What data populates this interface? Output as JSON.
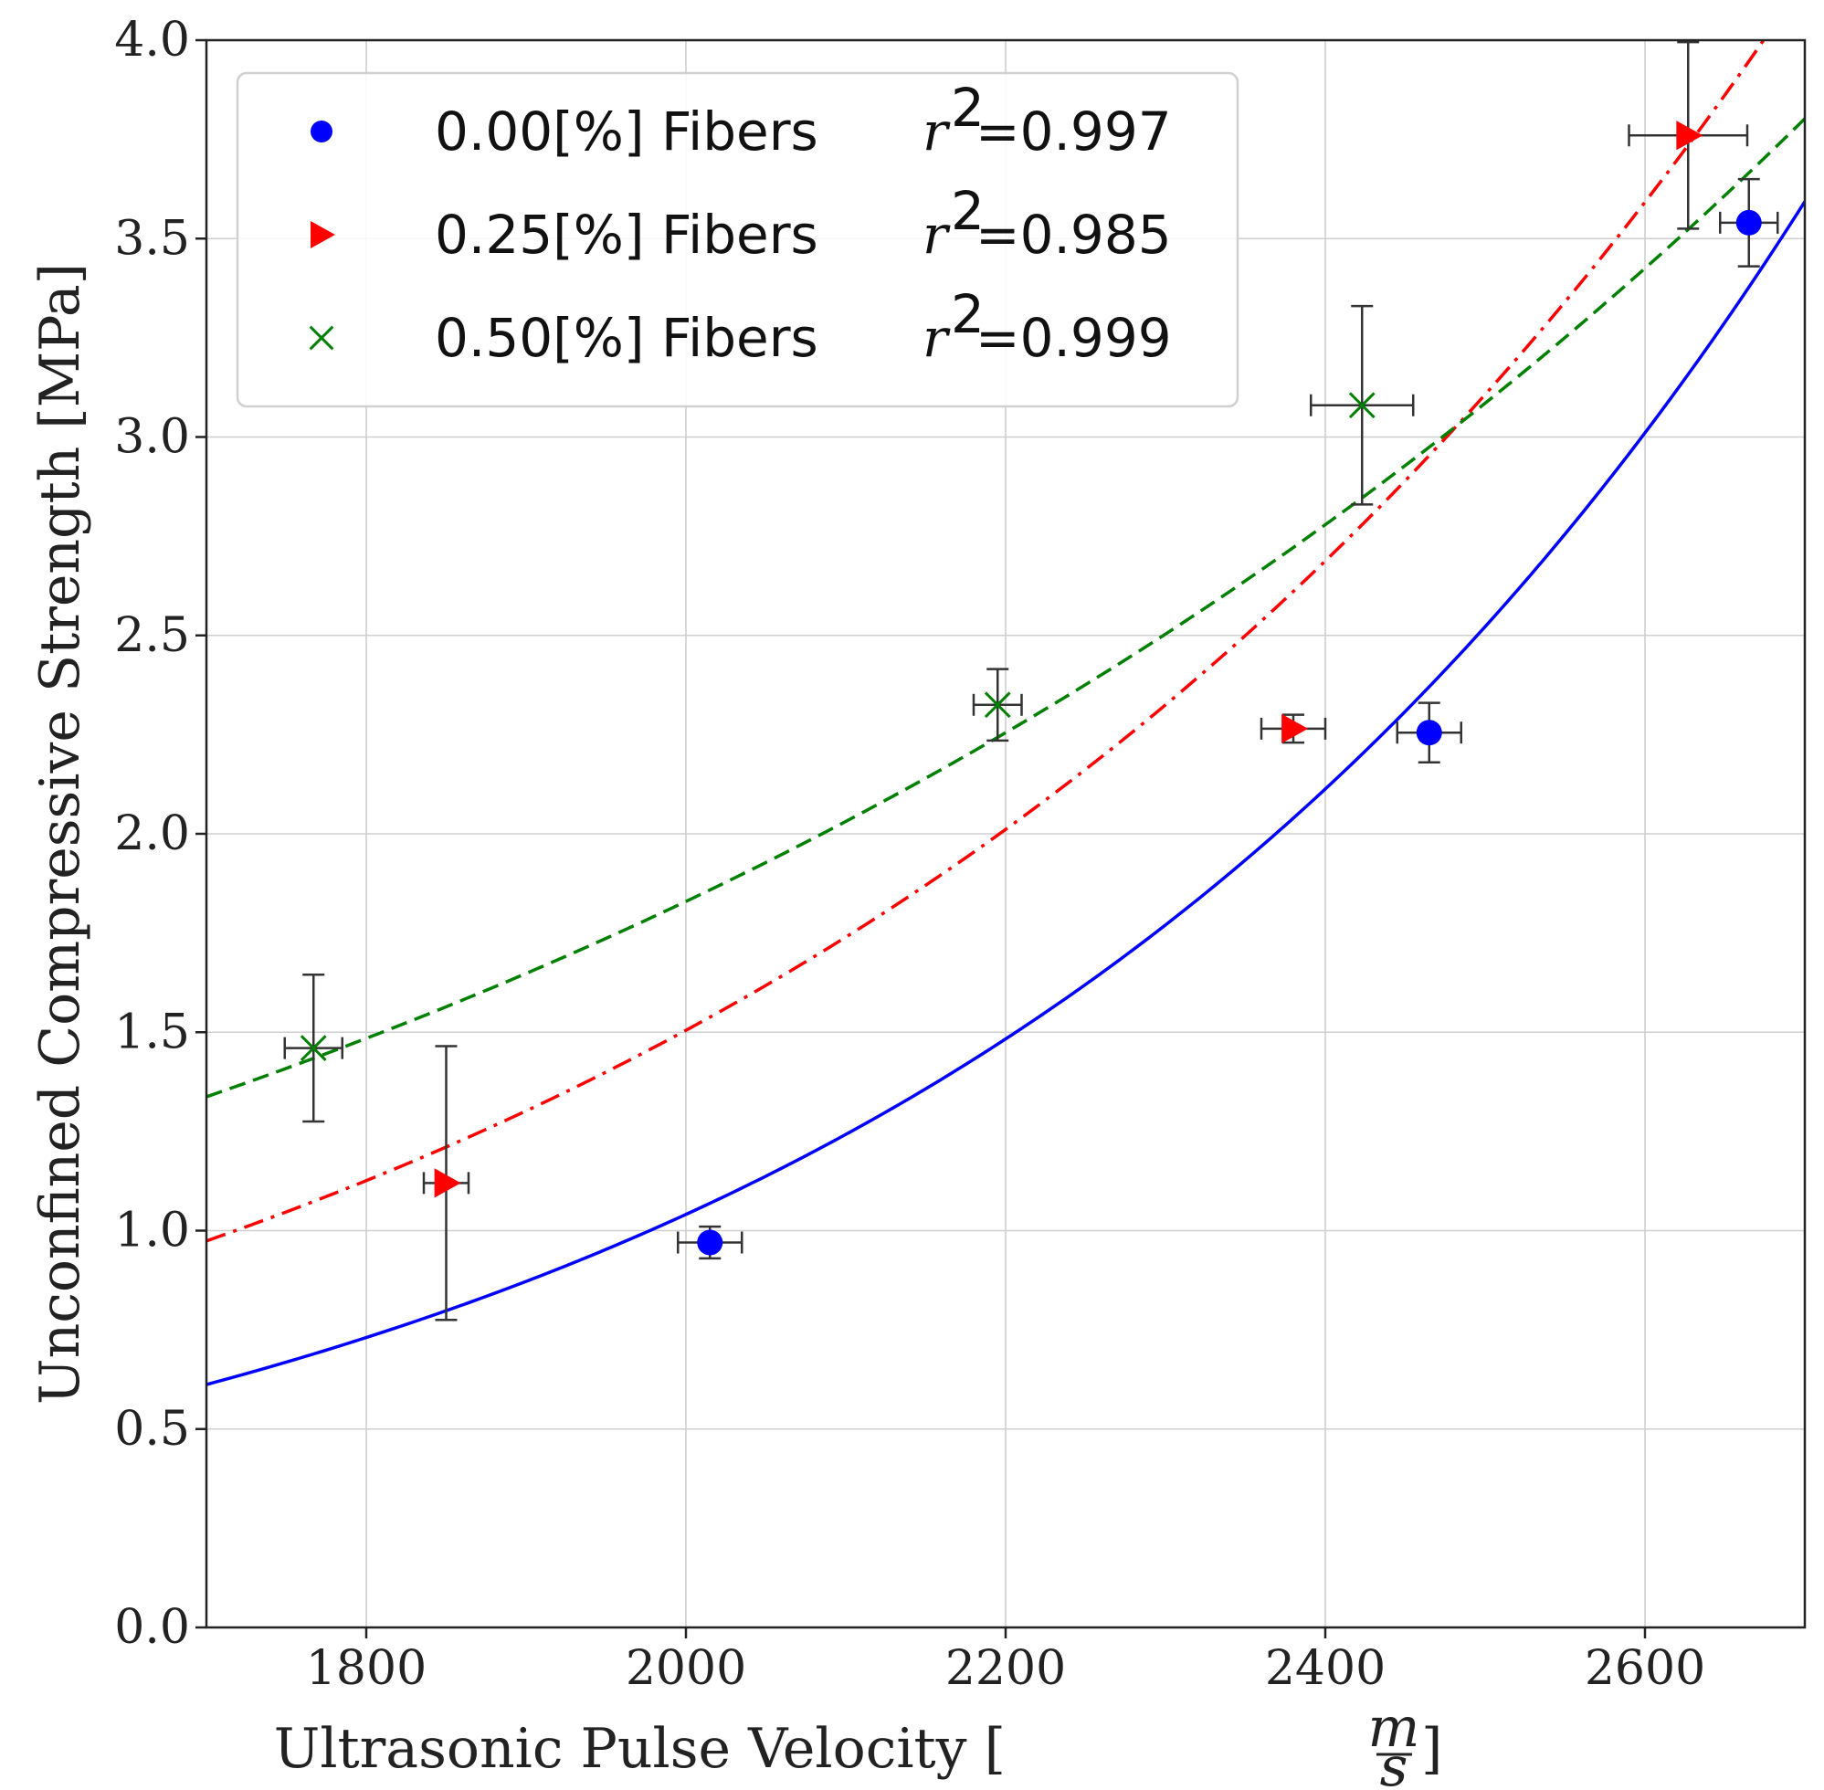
{
  "chart_data": {
    "type": "scatter",
    "xlabel": "Ultrasonic Pulse Velocity",
    "xlabel_unit_num": "m",
    "xlabel_unit_den": "s",
    "ylabel": "Unconfined Compressive Strength [MPa]",
    "xlim": [
      1700,
      2700
    ],
    "ylim": [
      0.0,
      4.0
    ],
    "xticks": [
      1800,
      2000,
      2200,
      2400,
      2600
    ],
    "xtick_labels": [
      "1800",
      "2000",
      "2200",
      "2400",
      "2600"
    ],
    "yticks": [
      0.0,
      0.5,
      1.0,
      1.5,
      2.0,
      2.5,
      3.0,
      3.5,
      4.0
    ],
    "ytick_labels": [
      "0.0",
      "0.5",
      "1.0",
      "1.5",
      "2.0",
      "2.5",
      "3.0",
      "3.5",
      "4.0"
    ],
    "grid": true,
    "legend_position": "top-left",
    "series": [
      {
        "name": "0.00[%] Fibers",
        "r2_label": "r",
        "r2_value": "=0.997",
        "color": "#0000ff",
        "marker": "circle",
        "fit_style": "solid",
        "fit": {
          "a": 0.0302,
          "b": 0.00177
        },
        "points": [
          {
            "x": 2015,
            "y": 0.97,
            "xerr": 20,
            "yerr": 0.04
          },
          {
            "x": 2465,
            "y": 2.255,
            "xerr": 20,
            "yerr": 0.075
          },
          {
            "x": 2665,
            "y": 3.54,
            "xerr": 18,
            "yerr": 0.11
          }
        ]
      },
      {
        "name": "0.25[%] Fibers",
        "r2_label": "r",
        "r2_value": "=0.985",
        "color": "#ff0000",
        "marker": "triangle-right",
        "fit_style": "dashdot",
        "fit": {
          "a": 0.0828,
          "b": 0.00145
        },
        "points": [
          {
            "x": 1850,
            "y": 1.12,
            "xerr": 14,
            "yerr": 0.345
          },
          {
            "x": 2380,
            "y": 2.265,
            "xerr": 20,
            "yerr": 0.035
          },
          {
            "x": 2627,
            "y": 3.76,
            "xerr": 37,
            "yerr": 0.235
          }
        ]
      },
      {
        "name": "0.50[%] Fibers",
        "r2_label": "r",
        "r2_value": "=0.999",
        "color": "#008000",
        "marker": "x",
        "fit_style": "dashed",
        "fit": {
          "a": 0.2263,
          "b": 0.001045
        },
        "points": [
          {
            "x": 1767,
            "y": 1.46,
            "xerr": 18,
            "yerr": 0.185
          },
          {
            "x": 2195,
            "y": 2.325,
            "xerr": 15,
            "yerr": 0.09
          },
          {
            "x": 2423,
            "y": 3.08,
            "xerr": 32,
            "yerr": 0.25
          }
        ]
      }
    ]
  }
}
